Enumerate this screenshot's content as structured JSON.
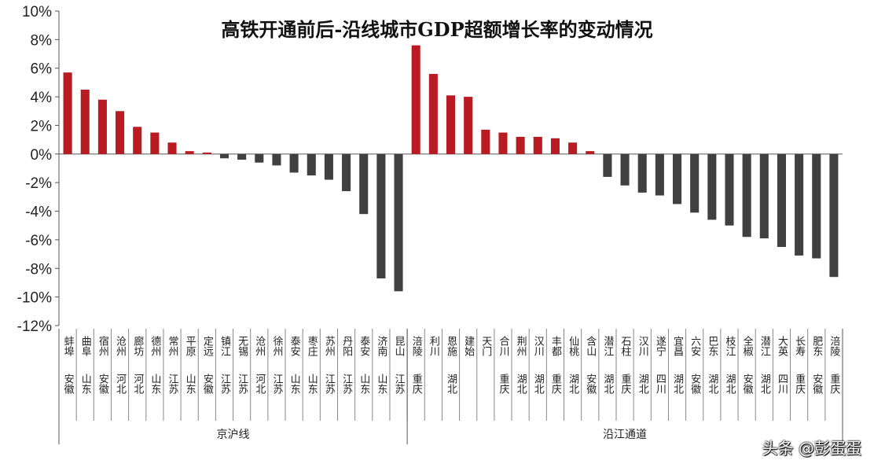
{
  "title": "高铁开通前后-沿线城市GDP超额增长率的变动情况",
  "watermark": "头条 @彭蛋蛋",
  "colors": {
    "positive": "#b81c22",
    "negative": "#404040",
    "axis": "#555555",
    "text": "#222222"
  },
  "chart_data": {
    "type": "bar",
    "ylim": [
      -12,
      10
    ],
    "yticks": [
      "10%",
      "8%",
      "6%",
      "4%",
      "2%",
      "0%",
      "-2%",
      "-4%",
      "-6%",
      "-8%",
      "-10%",
      "-12%"
    ],
    "y_tick_values": [
      10,
      8,
      6,
      4,
      2,
      0,
      -2,
      -4,
      -6,
      -8,
      -10,
      -12
    ],
    "groups": [
      {
        "label": "京沪线",
        "bars": [
          {
            "city": "蚌埠",
            "province": "安徽",
            "value": 5.7
          },
          {
            "city": "曲阜",
            "province": "山东",
            "value": 4.5
          },
          {
            "city": "宿州",
            "province": "安徽",
            "value": 3.8
          },
          {
            "city": "沧州",
            "province": "河北",
            "value": 3.0
          },
          {
            "city": "廊坊",
            "province": "河北",
            "value": 1.9
          },
          {
            "city": "德州",
            "province": "山东",
            "value": 1.5
          },
          {
            "city": "常州",
            "province": "江苏",
            "value": 0.8
          },
          {
            "city": "平原",
            "province": "山东",
            "value": 0.2
          },
          {
            "city": "定远",
            "province": "安徽",
            "value": 0.1
          },
          {
            "city": "镇江",
            "province": "江苏",
            "value": -0.3
          },
          {
            "city": "无锡",
            "province": "江苏",
            "value": -0.4
          },
          {
            "city": "沧州",
            "province": "河北",
            "value": -0.6
          },
          {
            "city": "徐州",
            "province": "江苏",
            "value": -0.8
          },
          {
            "city": "泰安",
            "province": "山东",
            "value": -1.3
          },
          {
            "city": "枣庄",
            "province": "山东",
            "value": -1.5
          },
          {
            "city": "苏州",
            "province": "江苏",
            "value": -1.8
          },
          {
            "city": "丹阳",
            "province": "江苏",
            "value": -2.6
          },
          {
            "city": "泰安",
            "province": "山东",
            "value": -4.2
          },
          {
            "city": "济南",
            "province": "山东",
            "value": -8.7
          },
          {
            "city": "昆山",
            "province": "江苏",
            "value": -9.6
          }
        ]
      },
      {
        "label": "沿江通道",
        "bars": [
          {
            "city": "涪陵",
            "province": "重庆",
            "value": 7.6
          },
          {
            "city": "利川",
            "province": "",
            "value": 5.6
          },
          {
            "city": "恩施",
            "province": "湖北",
            "value": 4.1
          },
          {
            "city": "建始",
            "province": "",
            "value": 4.0
          },
          {
            "city": "天门",
            "province": "",
            "value": 1.7
          },
          {
            "city": "合川",
            "province": "重庆",
            "value": 1.5
          },
          {
            "city": "荆州",
            "province": "湖北",
            "value": 1.2
          },
          {
            "city": "汉川",
            "province": "湖北",
            "value": 1.2
          },
          {
            "city": "丰都",
            "province": "重庆",
            "value": 1.1
          },
          {
            "city": "仙桃",
            "province": "湖北",
            "value": 0.8
          },
          {
            "city": "含山",
            "province": "安徽",
            "value": 0.2
          },
          {
            "city": "潜江",
            "province": "湖北",
            "value": -1.6
          },
          {
            "city": "石柱",
            "province": "重庆",
            "value": -2.2
          },
          {
            "city": "汉川",
            "province": "湖北",
            "value": -2.7
          },
          {
            "city": "遂宁",
            "province": "四川",
            "value": -2.9
          },
          {
            "city": "宜昌",
            "province": "湖北",
            "value": -3.5
          },
          {
            "city": "六安",
            "province": "安徽",
            "value": -4.1
          },
          {
            "city": "巴东",
            "province": "湖北",
            "value": -4.6
          },
          {
            "city": "枝江",
            "province": "湖北",
            "value": -5.0
          },
          {
            "city": "全椒",
            "province": "安徽",
            "value": -5.8
          },
          {
            "city": "潜江",
            "province": "湖北",
            "value": -5.9
          },
          {
            "city": "大英",
            "province": "四川",
            "value": -6.5
          },
          {
            "city": "长寿",
            "province": "重庆",
            "value": -7.1
          },
          {
            "city": "肥东",
            "province": "安徽",
            "value": -7.3
          },
          {
            "city": "涪陵",
            "province": "重庆",
            "value": -8.6
          }
        ]
      }
    ]
  }
}
